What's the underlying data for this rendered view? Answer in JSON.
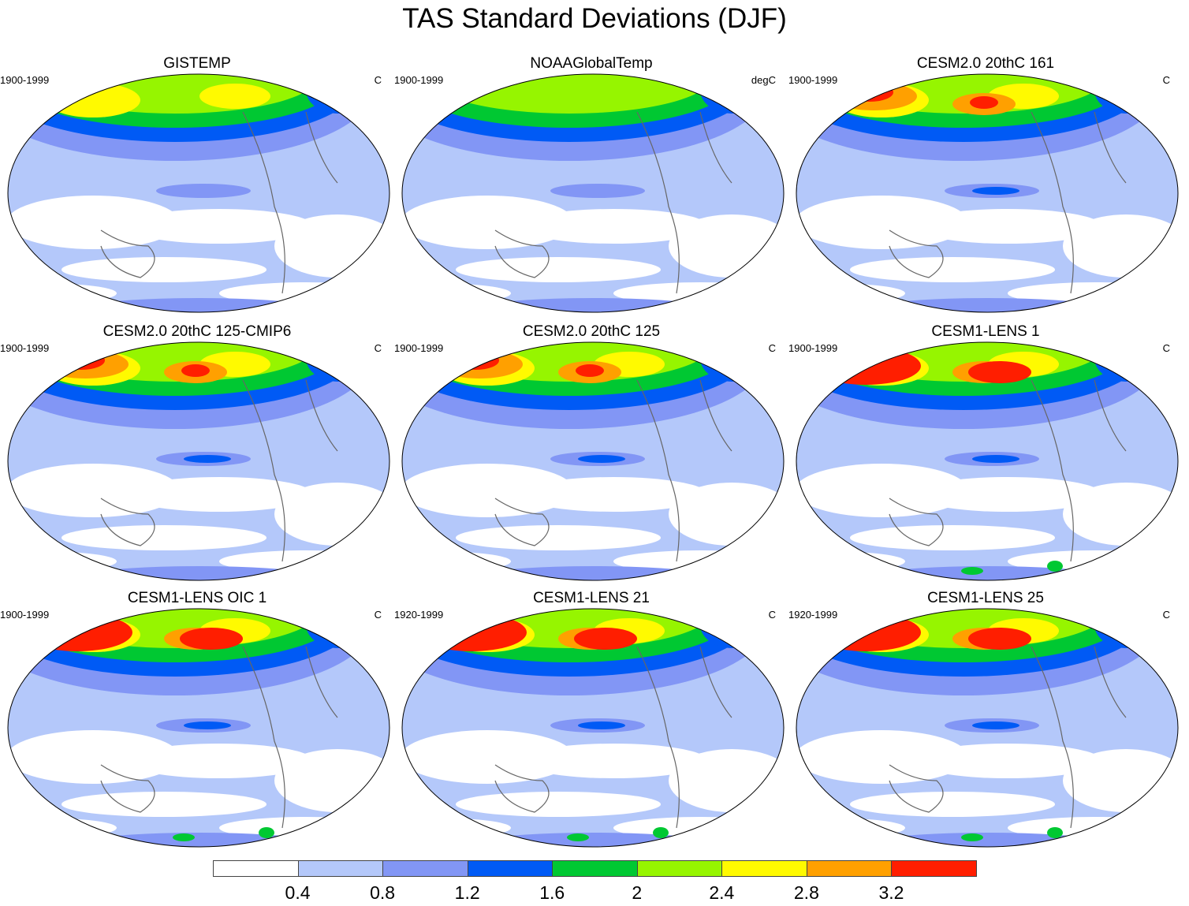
{
  "title": "TAS Standard Deviations (DJF)",
  "levels": [
    {
      "label": "",
      "color": "#ffffff"
    },
    {
      "label": "0.4",
      "color": "#b4c8fa"
    },
    {
      "label": "0.8",
      "color": "#8296f5"
    },
    {
      "label": "1.2",
      "color": "#005af5"
    },
    {
      "label": "1.6",
      "color": "#00c832"
    },
    {
      "label": "2",
      "color": "#96f500"
    },
    {
      "label": "2.4",
      "color": "#fffa00"
    },
    {
      "label": "2.8",
      "color": "#ffa000"
    },
    {
      "label": "3.2",
      "color": "#ff1e00"
    }
  ],
  "panels": [
    {
      "title": "GISTEMP",
      "period": "1900-1999",
      "units": "C",
      "intensity": 2
    },
    {
      "title": "NOAAGlobalTemp",
      "period": "1900-1999",
      "units": "degC",
      "intensity": 1
    },
    {
      "title": "CESM2.0 20thC 161",
      "period": "1900-1999",
      "units": "C",
      "intensity": 3
    },
    {
      "title": "CESM2.0 20thC 125-CMIP6",
      "period": "1900-1999",
      "units": "C",
      "intensity": 3
    },
    {
      "title": "CESM2.0 20thC 125",
      "period": "1900-1999",
      "units": "C",
      "intensity": 3
    },
    {
      "title": "CESM1-LENS 1",
      "period": "1900-1999",
      "units": "C",
      "intensity": 4
    },
    {
      "title": "CESM1-LENS OIC 1",
      "period": "1900-1999",
      "units": "C",
      "intensity": 4
    },
    {
      "title": "CESM1-LENS 21",
      "period": "1920-1999",
      "units": "C",
      "intensity": 4
    },
    {
      "title": "CESM1-LENS 25",
      "period": "1920-1999",
      "units": "C",
      "intensity": 4
    }
  ]
}
